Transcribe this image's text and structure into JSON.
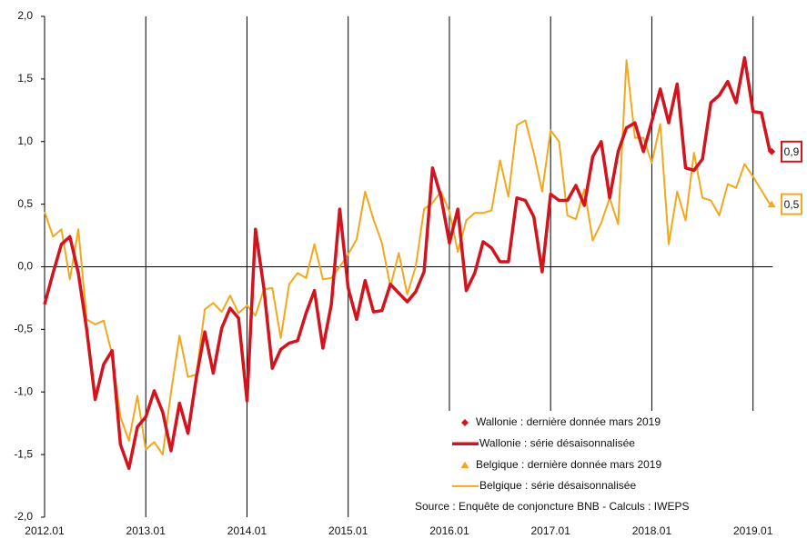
{
  "chart_data": {
    "type": "line",
    "categories": [
      "2012.01",
      null,
      null,
      null,
      null,
      null,
      null,
      null,
      null,
      null,
      null,
      null,
      "2013.01",
      null,
      null,
      null,
      null,
      null,
      null,
      null,
      null,
      null,
      null,
      null,
      "2014.01",
      null,
      null,
      null,
      null,
      null,
      null,
      null,
      null,
      null,
      null,
      null,
      "2015.01",
      null,
      null,
      null,
      null,
      null,
      null,
      null,
      null,
      null,
      null,
      null,
      "2016.01",
      null,
      null,
      null,
      null,
      null,
      null,
      null,
      null,
      null,
      null,
      null,
      "2017.01",
      null,
      null,
      null,
      null,
      null,
      null,
      null,
      null,
      null,
      null,
      null,
      "2018.01",
      null,
      null,
      null,
      null,
      null,
      null,
      null,
      null,
      null,
      null,
      null,
      "2019.01",
      null,
      null
    ],
    "series": [
      {
        "name": "Wallonie : dernière donnée mars 2019",
        "color": "#d2141e",
        "marker": "diamond",
        "values": [
          null,
          null,
          null,
          null,
          null,
          null,
          null,
          null,
          null,
          null,
          null,
          null,
          null,
          null,
          null,
          null,
          null,
          null,
          null,
          null,
          null,
          null,
          null,
          null,
          null,
          null,
          null,
          null,
          null,
          null,
          null,
          null,
          null,
          null,
          null,
          null,
          null,
          null,
          null,
          null,
          null,
          null,
          null,
          null,
          null,
          null,
          null,
          null,
          null,
          null,
          null,
          null,
          null,
          null,
          null,
          null,
          null,
          null,
          null,
          null,
          null,
          null,
          null,
          null,
          null,
          null,
          null,
          null,
          null,
          null,
          null,
          null,
          null,
          null,
          null,
          null,
          null,
          null,
          null,
          null,
          null,
          null,
          null,
          null,
          null,
          null,
          0.92
        ],
        "value_labels": [
          null,
          null,
          null,
          null,
          null,
          null,
          null,
          null,
          null,
          null,
          null,
          null,
          null,
          null,
          null,
          null,
          null,
          null,
          null,
          null,
          null,
          null,
          null,
          null,
          null,
          null,
          null,
          null,
          null,
          null,
          null,
          null,
          null,
          null,
          null,
          null,
          null,
          null,
          null,
          null,
          null,
          null,
          null,
          null,
          null,
          null,
          null,
          null,
          null,
          null,
          null,
          null,
          null,
          null,
          null,
          null,
          null,
          null,
          null,
          null,
          null,
          null,
          null,
          null,
          null,
          null,
          null,
          null,
          null,
          null,
          null,
          null,
          null,
          null,
          null,
          null,
          null,
          null,
          null,
          null,
          null,
          null,
          null,
          null,
          null,
          null,
          "0,9"
        ]
      },
      {
        "name": "Wallonie : série désaisonnalisée",
        "color": "#d2141e",
        "width": 3.5,
        "values": [
          -0.3,
          -0.05,
          0.18,
          0.24,
          -0.05,
          -0.5,
          -1.06,
          -0.78,
          -0.67,
          -1.42,
          -1.61,
          -1.28,
          -1.2,
          -0.99,
          -1.16,
          -1.47,
          -1.09,
          -1.33,
          -0.88,
          -0.52,
          -0.85,
          -0.49,
          -0.33,
          -0.41,
          -1.07,
          0.3,
          -0.17,
          -0.81,
          -0.66,
          -0.61,
          -0.59,
          -0.37,
          -0.19,
          -0.65,
          -0.3,
          0.46,
          -0.17,
          -0.42,
          -0.11,
          -0.36,
          -0.35,
          -0.14,
          -0.21,
          -0.28,
          -0.2,
          -0.04,
          0.79,
          0.56,
          0.19,
          0.46,
          -0.19,
          -0.05,
          0.2,
          0.15,
          0.04,
          0.04,
          0.55,
          0.53,
          0.4,
          -0.04,
          0.58,
          0.53,
          0.53,
          0.65,
          0.49,
          0.88,
          1.0,
          0.55,
          0.92,
          1.11,
          1.15,
          0.92,
          1.16,
          1.42,
          1.15,
          1.46,
          0.79,
          0.77,
          0.86,
          1.31,
          1.37,
          1.48,
          1.31,
          1.67,
          1.24,
          1.23,
          0.92
        ]
      },
      {
        "name": "Belgique : dernière donnée mars 2019",
        "color": "#f2a81d",
        "marker": "triangle",
        "values": [
          null,
          null,
          null,
          null,
          null,
          null,
          null,
          null,
          null,
          null,
          null,
          null,
          null,
          null,
          null,
          null,
          null,
          null,
          null,
          null,
          null,
          null,
          null,
          null,
          null,
          null,
          null,
          null,
          null,
          null,
          null,
          null,
          null,
          null,
          null,
          null,
          null,
          null,
          null,
          null,
          null,
          null,
          null,
          null,
          null,
          null,
          null,
          null,
          null,
          null,
          null,
          null,
          null,
          null,
          null,
          null,
          null,
          null,
          null,
          null,
          null,
          null,
          null,
          null,
          null,
          null,
          null,
          null,
          null,
          null,
          null,
          null,
          null,
          null,
          null,
          null,
          null,
          null,
          null,
          null,
          null,
          null,
          null,
          null,
          null,
          null,
          0.5
        ],
        "value_labels": [
          null,
          null,
          null,
          null,
          null,
          null,
          null,
          null,
          null,
          null,
          null,
          null,
          null,
          null,
          null,
          null,
          null,
          null,
          null,
          null,
          null,
          null,
          null,
          null,
          null,
          null,
          null,
          null,
          null,
          null,
          null,
          null,
          null,
          null,
          null,
          null,
          null,
          null,
          null,
          null,
          null,
          null,
          null,
          null,
          null,
          null,
          null,
          null,
          null,
          null,
          null,
          null,
          null,
          null,
          null,
          null,
          null,
          null,
          null,
          null,
          null,
          null,
          null,
          null,
          null,
          null,
          null,
          null,
          null,
          null,
          null,
          null,
          null,
          null,
          null,
          null,
          null,
          null,
          null,
          null,
          null,
          null,
          null,
          null,
          null,
          null,
          "0,5"
        ]
      },
      {
        "name": "Belgique : série désaisonnalisée",
        "color": "#f2a81d",
        "width": 2,
        "values": [
          0.44,
          0.24,
          0.3,
          -0.1,
          0.3,
          -0.42,
          -0.46,
          -0.43,
          -0.7,
          -1.2,
          -1.39,
          -1.03,
          -1.46,
          -1.4,
          -1.5,
          -1.0,
          -0.55,
          -0.88,
          -0.86,
          -0.34,
          -0.29,
          -0.36,
          -0.23,
          -0.37,
          -0.31,
          -0.39,
          -0.18,
          -0.17,
          -0.57,
          -0.14,
          -0.05,
          -0.09,
          0.18,
          -0.1,
          -0.09,
          0.0,
          0.1,
          0.22,
          0.6,
          0.38,
          0.19,
          -0.16,
          0.11,
          -0.22,
          0.0,
          0.46,
          0.51,
          0.6,
          0.44,
          0.12,
          0.37,
          0.43,
          0.43,
          0.45,
          0.85,
          0.56,
          1.13,
          1.17,
          0.91,
          0.6,
          1.09,
          1.0,
          0.41,
          0.38,
          0.62,
          0.21,
          0.35,
          0.55,
          0.34,
          1.65,
          1.03,
          1.03,
          0.83,
          1.14,
          0.18,
          0.6,
          0.37,
          0.91,
          0.55,
          0.53,
          0.41,
          0.66,
          0.63,
          0.82,
          0.72,
          0.61,
          0.5
        ]
      }
    ],
    "ylim": [
      -2,
      2
    ],
    "yticks": [
      {
        "value": -2,
        "label": "-2,0"
      },
      {
        "value": -1.5,
        "label": "-1,5"
      },
      {
        "value": -1,
        "label": "-1,0"
      },
      {
        "value": -0.5,
        "label": "-0,5"
      },
      {
        "value": 0,
        "label": "0,0"
      },
      {
        "value": 0.5,
        "label": "0,5"
      },
      {
        "value": 1,
        "label": "1,0"
      },
      {
        "value": 1.5,
        "label": "1,5"
      },
      {
        "value": 2,
        "label": "2,0"
      }
    ],
    "source": "Source : Enquête de conjoncture BNB - Calculs : IWEPS"
  }
}
